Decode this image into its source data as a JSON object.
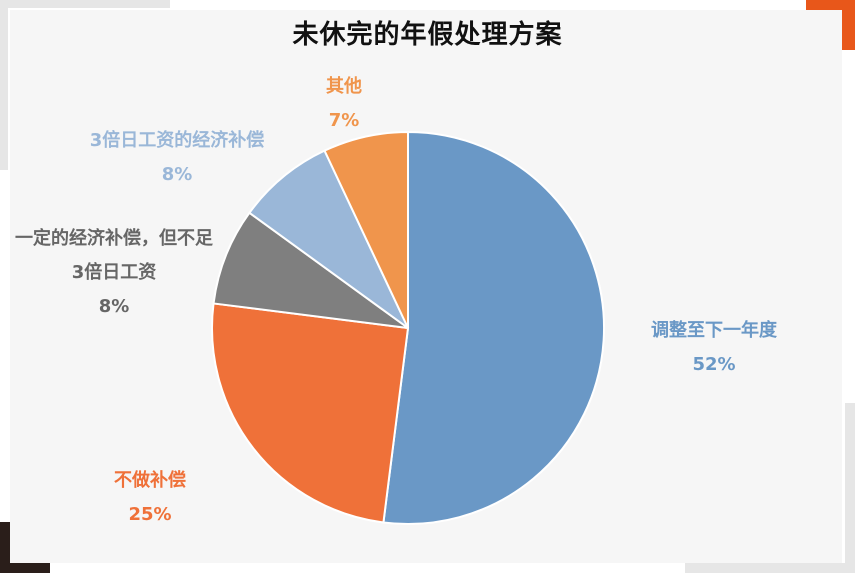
{
  "chart_data": {
    "type": "pie",
    "title": "未休完的年假处理方案",
    "slices": [
      {
        "name": "调整至下一年度",
        "value": 52,
        "label": "52%",
        "color": "#6a98c6"
      },
      {
        "name": "不做补偿",
        "value": 25,
        "label": "25%",
        "color": "#ef7139"
      },
      {
        "name": "一定的经济补偿，但不足3倍日工资",
        "line1": "一定的经济补偿，但不足",
        "line2": "3倍日工资",
        "value": 8,
        "label": "8%",
        "color": "#7f7f7f"
      },
      {
        "name": "3倍日工资的经济补偿",
        "value": 8,
        "label": "8%",
        "color": "#9ab7d8"
      },
      {
        "name": "其他",
        "value": 7,
        "label": "7%",
        "color": "#f0954c"
      }
    ],
    "start": "12 o'clock",
    "direction": "clockwise",
    "legend": "none"
  },
  "colors": {
    "accent_orange": "#e8571a",
    "accent_dark": "#2a1e1a",
    "frame_gray": "#e6e6e6"
  }
}
